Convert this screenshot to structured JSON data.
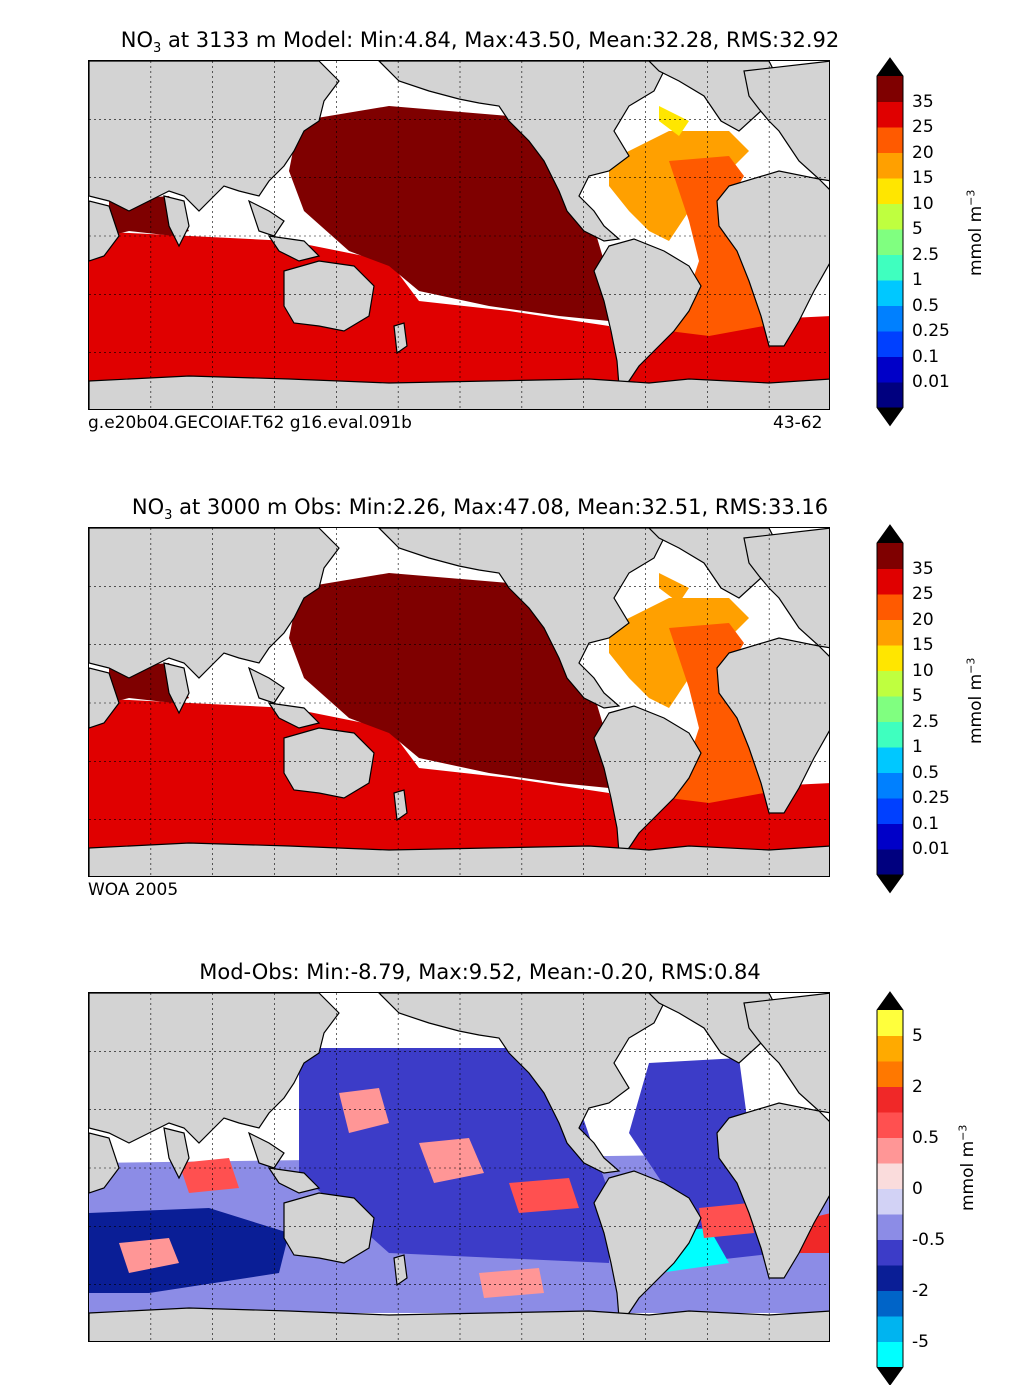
{
  "panels": [
    {
      "title_prefix": "NO",
      "title_sub": "3",
      "title_rest": " at 3133 m Model: Min:4.84, Max:43.50, Mean:32.28, RMS:32.92",
      "caption_left": "g.e20b04.GECOIAF.T62 g16.eval.091b",
      "caption_right": "43-62",
      "colorbar": {
        "unit_base": "mmol m",
        "unit_exp": "−3",
        "ticks": [
          "0.01",
          "0.1",
          "0.25",
          "0.5",
          "1",
          "2.5",
          "5",
          "10",
          "15",
          "20",
          "25",
          "35"
        ],
        "colors": [
          "#00007f",
          "#0000c8",
          "#0040ff",
          "#0080ff",
          "#00c8ff",
          "#3fffbf",
          "#80ff80",
          "#bfff3f",
          "#ffe600",
          "#ffa000",
          "#ff5a00",
          "#e00000",
          "#7f0000"
        ],
        "under_color": "#000000",
        "over_color": "#000000"
      }
    },
    {
      "title_prefix": "NO",
      "title_sub": "3",
      "title_rest": " at 3000 m Obs: Min:2.26, Max:47.08, Mean:32.51, RMS:33.16",
      "caption_left": "WOA 2005",
      "caption_right": "",
      "colorbar": {
        "unit_base": "mmol m",
        "unit_exp": "−3",
        "ticks": [
          "0.01",
          "0.1",
          "0.25",
          "0.5",
          "1",
          "2.5",
          "5",
          "10",
          "15",
          "20",
          "25",
          "35"
        ],
        "colors": [
          "#00007f",
          "#0000c8",
          "#0040ff",
          "#0080ff",
          "#00c8ff",
          "#3fffbf",
          "#80ff80",
          "#bfff3f",
          "#ffe600",
          "#ffa000",
          "#ff5a00",
          "#e00000",
          "#7f0000"
        ],
        "under_color": "#000000",
        "over_color": "#000000"
      }
    },
    {
      "title_prefix": "",
      "title_sub": "",
      "title_rest": "Mod-Obs: Min:-8.79, Max:9.52, Mean:-0.20, RMS:0.84",
      "caption_left": "",
      "caption_right": "",
      "colorbar": {
        "unit_base": "mmol m",
        "unit_exp": "−3",
        "ticks": [
          "-5",
          "-2",
          "-0.5",
          "0",
          "0.5",
          "2",
          "5"
        ],
        "tick_slots": [
          1,
          3,
          5,
          7,
          9,
          11,
          13
        ],
        "colors": [
          "#00ffff",
          "#00b4f0",
          "#0064c8",
          "#0a1e96",
          "#3c3cc8",
          "#8c8ce6",
          "#d2d2f5",
          "#fadcdc",
          "#ff9696",
          "#ff5050",
          "#f02828",
          "#ff7800",
          "#ffaa00",
          "#ffff3c"
        ],
        "under_color": "#000000",
        "over_color": "#000000"
      }
    }
  ]
}
